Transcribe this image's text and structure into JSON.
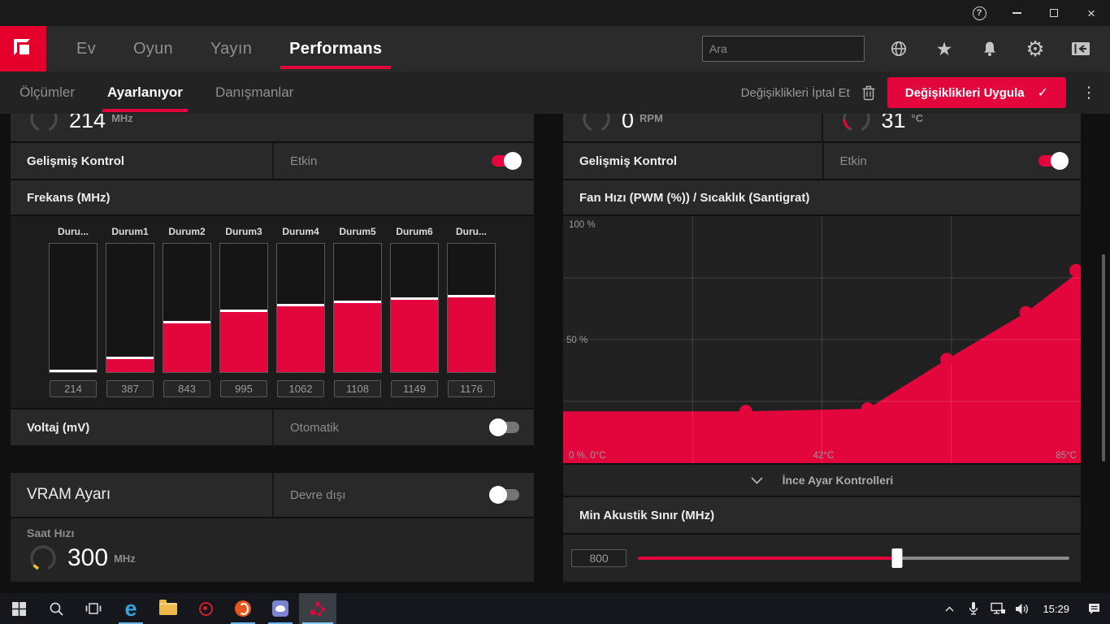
{
  "colors": {
    "accent": "#e2063c",
    "amd_red": "#e4002b",
    "running_underline": "#6ab2e8",
    "gauge_yellow": "#f1c232"
  },
  "titlebar": {
    "help_glyph": "?",
    "close_glyph": "×",
    "icons": [
      "help-icon",
      "minimize-icon",
      "maximize-icon",
      "close-icon"
    ]
  },
  "navbar": {
    "items": [
      {
        "label": "Ev",
        "active": false
      },
      {
        "label": "Oyun",
        "active": false
      },
      {
        "label": "Yayın",
        "active": false
      },
      {
        "label": "Performans",
        "active": true
      }
    ],
    "search_placeholder": "Ara",
    "icons": [
      "globe",
      "star",
      "bell",
      "gear",
      "collapse-panel"
    ]
  },
  "subnav": {
    "tabs": [
      {
        "label": "Ölçümler",
        "active": false
      },
      {
        "label": "Ayarlanıyor",
        "active": true
      },
      {
        "label": "Danışmanlar",
        "active": false
      }
    ],
    "discard_label": "Değişiklikleri İptal Et",
    "apply_label": "Değişiklikleri Uygula",
    "apply_check": "✓",
    "kebab_glyph": "⋮"
  },
  "gpu_panel": {
    "gauge": {
      "value": "214",
      "unit": "MHz"
    },
    "advanced_control": {
      "label": "Gelişmiş Kontrol",
      "state": "Etkin",
      "enabled": true
    },
    "frequency_title": "Frekans (MHz)",
    "voltage": {
      "label": "Voltaj (mV)",
      "state": "Otomatik",
      "enabled": false
    },
    "vram": {
      "label": "VRAM Ayarı",
      "state": "Devre dışı",
      "enabled": false,
      "clock_label": "Saat Hızı",
      "clock_value": "300",
      "clock_unit": "MHz"
    }
  },
  "fan_panel": {
    "gauge_rpm": {
      "value": "0",
      "unit": "RPM"
    },
    "gauge_temp": {
      "value": "31",
      "unit": "°C"
    },
    "advanced_control": {
      "label": "Gelişmiş Kontrol",
      "state": "Etkin",
      "enabled": true
    },
    "chart_title": "Fan Hızı (PWM (%)) / Sıcaklık (Santigrat)",
    "fine_tuning_label": "İnce Ayar Kontrolleri",
    "min_acoustic": {
      "label": "Min Akustik Sınır (MHz)",
      "value": "800",
      "slider_pct": 60
    }
  },
  "chart_data": [
    {
      "type": "bar",
      "title": "Frekans (MHz)",
      "categories": [
        "Duru...",
        "Durum1",
        "Durum2",
        "Durum3",
        "Durum4",
        "Durum5",
        "Durum6",
        "Duru..."
      ],
      "values": [
        214,
        387,
        843,
        995,
        1062,
        1108,
        1149,
        1176
      ],
      "fill_pct": [
        2,
        12,
        40,
        49,
        53,
        56,
        58,
        60
      ],
      "ylabel": "MHz",
      "grid": false,
      "legend": "none"
    },
    {
      "type": "area",
      "title": "Fan Hızı (PWM (%)) / Sıcaklık (Santigrat)",
      "x": [
        30,
        50,
        63,
        76,
        85
      ],
      "y": [
        21,
        22,
        42,
        61,
        78
      ],
      "xlim": [
        0,
        85
      ],
      "ylim": [
        0,
        100
      ],
      "xlabel": "Sıcaklık (Santigrat)",
      "ylabel": "Fan Hızı (PWM (%))",
      "y_tick_labels": {
        "top": "100 %",
        "mid": "50 %",
        "bottom": "0 %, 0°C"
      },
      "x_tick_labels": {
        "mid": "42°C",
        "right": "85°C"
      },
      "grid": true,
      "legend": "none"
    }
  ],
  "taskbar": {
    "apps": [
      {
        "name": "start",
        "running": false,
        "active": false
      },
      {
        "name": "search",
        "running": false,
        "active": false
      },
      {
        "name": "task-view",
        "running": false,
        "active": false
      },
      {
        "name": "edge",
        "running": true,
        "active": false
      },
      {
        "name": "file-explorer",
        "running": false,
        "active": false
      },
      {
        "name": "radeon-settings",
        "running": false,
        "active": false
      },
      {
        "name": "origin",
        "running": true,
        "active": false
      },
      {
        "name": "discord",
        "running": true,
        "active": false
      },
      {
        "name": "radeon-software",
        "running": true,
        "active": true
      }
    ],
    "tray_icons": [
      "chevron-up",
      "microphone",
      "network",
      "volume"
    ],
    "time": "15:29",
    "action_center": "action-center"
  }
}
